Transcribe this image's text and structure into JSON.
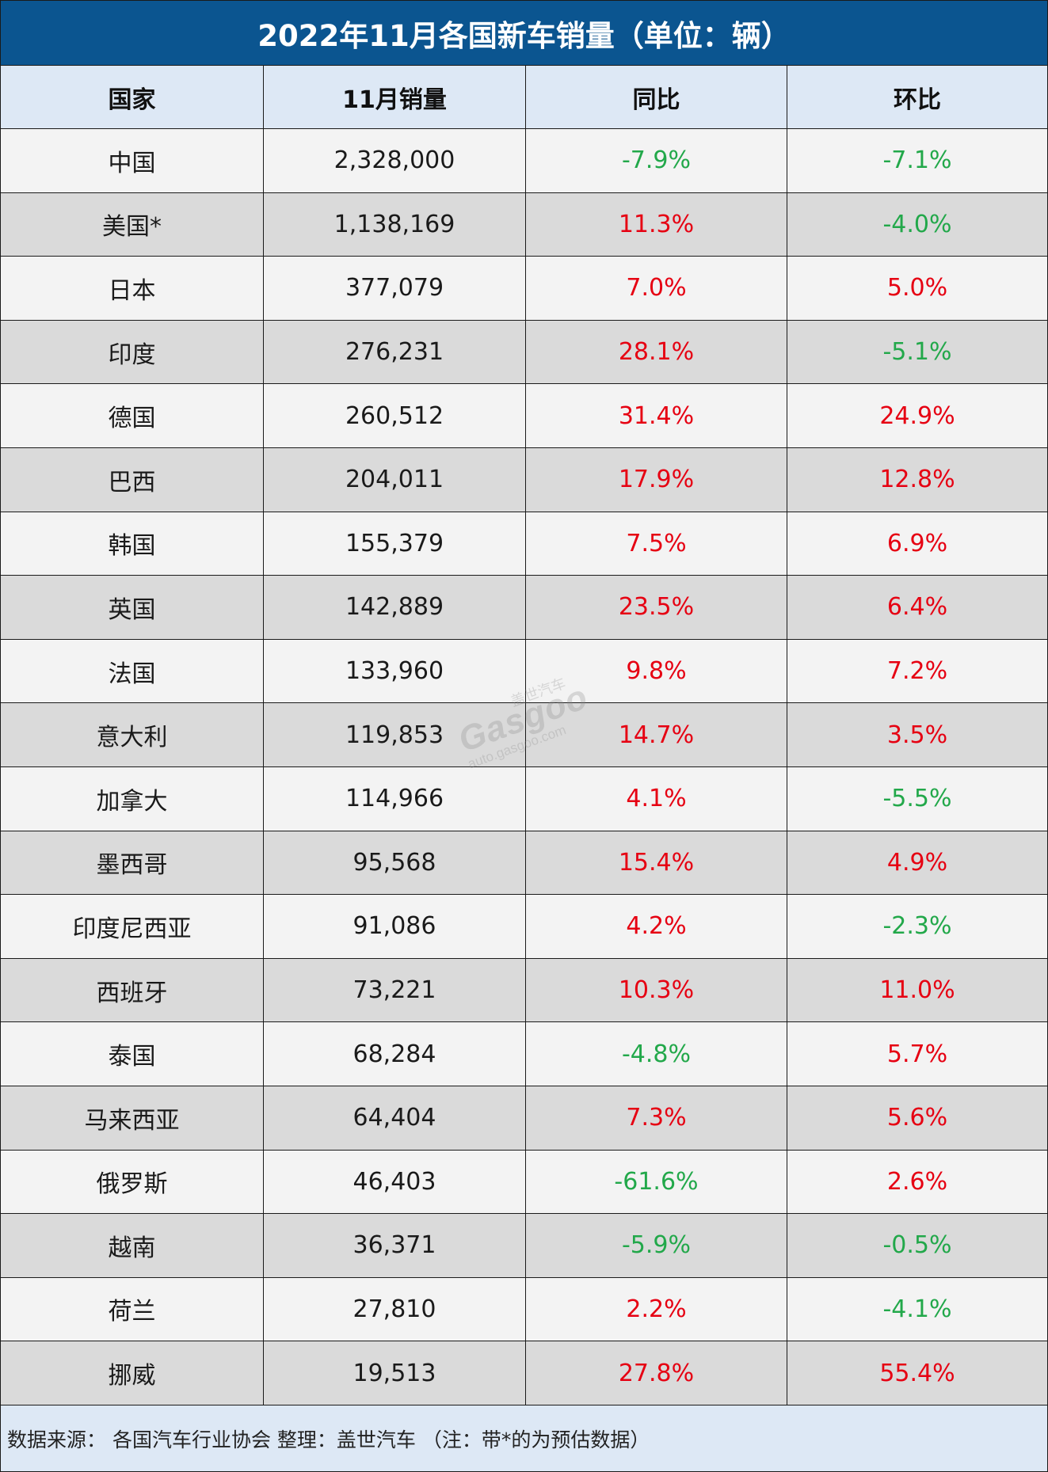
{
  "title": "2022年11月各国新车销量（单位：辆）",
  "headers": [
    "国家",
    "11月销量",
    "同比",
    "环比"
  ],
  "rows": [
    {
      "country": "中国",
      "sales": "2,328,000",
      "yoy": "-7.9%",
      "mom": "-7.1%"
    },
    {
      "country": "美国*",
      "sales": "1,138,169",
      "yoy": "11.3%",
      "mom": "-4.0%"
    },
    {
      "country": "日本",
      "sales": "377,079",
      "yoy": "7.0%",
      "mom": "5.0%"
    },
    {
      "country": "印度",
      "sales": "276,231",
      "yoy": "28.1%",
      "mom": "-5.1%"
    },
    {
      "country": "德国",
      "sales": "260,512",
      "yoy": "31.4%",
      "mom": "24.9%"
    },
    {
      "country": "巴西",
      "sales": "204,011",
      "yoy": "17.9%",
      "mom": "12.8%"
    },
    {
      "country": "韩国",
      "sales": "155,379",
      "yoy": "7.5%",
      "mom": "6.9%"
    },
    {
      "country": "英国",
      "sales": "142,889",
      "yoy": "23.5%",
      "mom": "6.4%"
    },
    {
      "country": "法国",
      "sales": "133,960",
      "yoy": "9.8%",
      "mom": "7.2%"
    },
    {
      "country": "意大利",
      "sales": "119,853",
      "yoy": "14.7%",
      "mom": "3.5%"
    },
    {
      "country": "加拿大",
      "sales": "114,966",
      "yoy": "4.1%",
      "mom": "-5.5%"
    },
    {
      "country": "墨西哥",
      "sales": "95,568",
      "yoy": "15.4%",
      "mom": "4.9%"
    },
    {
      "country": "印度尼西亚",
      "sales": "91,086",
      "yoy": "4.2%",
      "mom": "-2.3%"
    },
    {
      "country": "西班牙",
      "sales": "73,221",
      "yoy": "10.3%",
      "mom": "11.0%"
    },
    {
      "country": "泰国",
      "sales": "68,284",
      "yoy": "-4.8%",
      "mom": "5.7%"
    },
    {
      "country": "马来西亚",
      "sales": "64,404",
      "yoy": "7.3%",
      "mom": "5.6%"
    },
    {
      "country": "俄罗斯",
      "sales": "46,403",
      "yoy": "-61.6%",
      "mom": "2.6%"
    },
    {
      "country": "越南",
      "sales": "36,371",
      "yoy": "-5.9%",
      "mom": "-0.5%"
    },
    {
      "country": "荷兰",
      "sales": "27,810",
      "yoy": "2.2%",
      "mom": "-4.1%"
    },
    {
      "country": "挪威",
      "sales": "19,513",
      "yoy": "27.8%",
      "mom": "55.4%"
    }
  ],
  "footer": "数据来源： 各国汽车行业协会  整理：盖世汽车  （注：带*的为预估数据）",
  "watermark": {
    "main": "Gasgoo",
    "sub": "auto.gasgoo.com",
    "cn": "盖世汽车"
  },
  "colors": {
    "header_bg": "#0b5590",
    "positive": "#e60012",
    "negative": "#22a84a"
  },
  "chart_data": {
    "type": "table",
    "title": "2022年11月各国新车销量（单位：辆）",
    "columns": [
      "国家",
      "11月销量",
      "同比",
      "环比"
    ],
    "categories": [
      "中国",
      "美国*",
      "日本",
      "印度",
      "德国",
      "巴西",
      "韩国",
      "英国",
      "法国",
      "意大利",
      "加拿大",
      "墨西哥",
      "印度尼西亚",
      "西班牙",
      "泰国",
      "马来西亚",
      "俄罗斯",
      "越南",
      "荷兰",
      "挪威"
    ],
    "series": [
      {
        "name": "11月销量",
        "values": [
          2328000,
          1138169,
          377079,
          276231,
          260512,
          204011,
          155379,
          142889,
          133960,
          119853,
          114966,
          95568,
          91086,
          73221,
          68284,
          64404,
          46403,
          36371,
          27810,
          19513
        ]
      },
      {
        "name": "同比",
        "values": [
          -7.9,
          11.3,
          7.0,
          28.1,
          31.4,
          17.9,
          7.5,
          23.5,
          9.8,
          14.7,
          4.1,
          15.4,
          4.2,
          10.3,
          -4.8,
          7.3,
          -61.6,
          -5.9,
          2.2,
          27.8
        ]
      },
      {
        "name": "环比",
        "values": [
          -7.1,
          -4.0,
          5.0,
          -5.1,
          24.9,
          12.8,
          6.9,
          6.4,
          7.2,
          3.5,
          -5.5,
          4.9,
          -2.3,
          11.0,
          5.7,
          5.6,
          2.6,
          -0.5,
          -4.1,
          55.4
        ]
      }
    ]
  }
}
